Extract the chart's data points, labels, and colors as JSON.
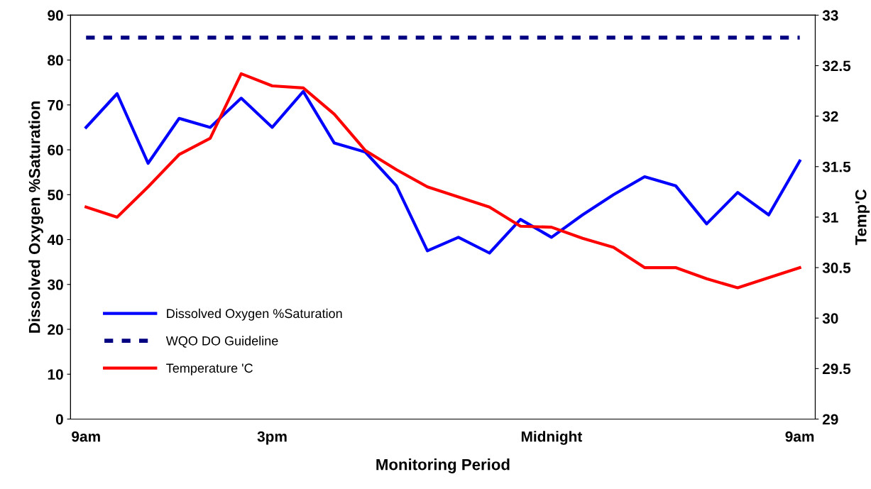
{
  "chart_data": {
    "type": "line",
    "xlabel": "Monitoring Period",
    "ylabel": "Dissolved Oxygen %Saturation",
    "y2label": "Temp'C",
    "categories": [
      "9am",
      null,
      null,
      null,
      null,
      null,
      "3pm",
      null,
      null,
      null,
      null,
      null,
      null,
      null,
      null,
      "Midnight",
      null,
      null,
      null,
      null,
      null,
      null,
      null,
      "9am"
    ],
    "series": [
      {
        "name": "Dissolved Oxygen %Saturation",
        "color": "#0000ff",
        "values": [
          65,
          72.5,
          57,
          67,
          65,
          71.5,
          65,
          73,
          61.5,
          59.5,
          52,
          37.5,
          40.5,
          37,
          44.5,
          40.5,
          45.5,
          50,
          54,
          52,
          43.5,
          50.5,
          45.5,
          57.5
        ]
      },
      {
        "name": "WQO DO Guideline",
        "color": "#000080",
        "line_style": "dashed",
        "values": [
          85,
          85,
          85,
          85,
          85,
          85,
          85,
          85,
          85,
          85,
          85,
          85,
          85,
          85,
          85,
          85,
          85,
          85,
          85,
          85,
          85,
          85,
          85,
          85
        ]
      },
      {
        "name": "Temperature 'C",
        "color": "#ff0000",
        "axis": "y2",
        "values": [
          31.1,
          31.0,
          31.3,
          31.62,
          31.78,
          32.42,
          32.3,
          32.28,
          32.02,
          31.66,
          31.47,
          31.3,
          31.2,
          31.1,
          30.91,
          30.9,
          30.79,
          30.7,
          30.5,
          30.5,
          30.39,
          30.3,
          30.4,
          30.5
        ]
      }
    ],
    "ylim": [
      0,
      90
    ],
    "yticks": [
      0,
      10,
      20,
      30,
      40,
      50,
      60,
      70,
      80,
      90
    ],
    "y2lim": [
      29,
      33
    ],
    "y2ticks": [
      29,
      29.5,
      30,
      30.5,
      31,
      31.5,
      32,
      32.5,
      33
    ],
    "grid": false,
    "legend": "bottom left"
  }
}
